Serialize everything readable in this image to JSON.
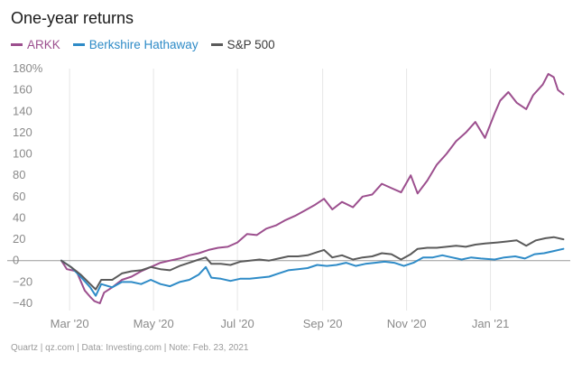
{
  "chart_data": {
    "type": "line",
    "title": "One-year returns",
    "ylabel": "",
    "xlabel": "",
    "ylim": [
      -40,
      180
    ],
    "y_ticks": [
      -40,
      -20,
      0,
      20,
      40,
      60,
      80,
      100,
      120,
      140,
      160,
      180
    ],
    "y_tick_labels": [
      "−40",
      "−20",
      "0",
      "20",
      "40",
      "60",
      "80",
      "100",
      "120",
      "140",
      "160",
      "180%"
    ],
    "xlim": [
      "2020-02-24",
      "2021-02-28"
    ],
    "x_ticks": [
      {
        "label": "Mar '20",
        "date": "2020-03-01"
      },
      {
        "label": "May '20",
        "date": "2020-05-01"
      },
      {
        "label": "Jul '20",
        "date": "2020-07-01"
      },
      {
        "label": "Sep '20",
        "date": "2020-09-01"
      },
      {
        "label": "Nov '20",
        "date": "2020-11-01"
      },
      {
        "label": "Jan '21",
        "date": "2021-01-01"
      }
    ],
    "grid": "vertical",
    "legend_position": "top-left",
    "series": [
      {
        "name": "ARKK",
        "color": "#9c4f8e",
        "points": [
          [
            "2020-02-24",
            0
          ],
          [
            "2020-02-28",
            -8
          ],
          [
            "2020-03-06",
            -10
          ],
          [
            "2020-03-12",
            -28
          ],
          [
            "2020-03-16",
            -34
          ],
          [
            "2020-03-19",
            -38
          ],
          [
            "2020-03-23",
            -40
          ],
          [
            "2020-03-26",
            -30
          ],
          [
            "2020-04-01",
            -25
          ],
          [
            "2020-04-08",
            -18
          ],
          [
            "2020-04-15",
            -15
          ],
          [
            "2020-04-22",
            -10
          ],
          [
            "2020-04-29",
            -6
          ],
          [
            "2020-05-06",
            -2
          ],
          [
            "2020-05-13",
            0
          ],
          [
            "2020-05-20",
            2
          ],
          [
            "2020-05-27",
            5
          ],
          [
            "2020-06-03",
            7
          ],
          [
            "2020-06-10",
            10
          ],
          [
            "2020-06-17",
            12
          ],
          [
            "2020-06-24",
            13
          ],
          [
            "2020-07-01",
            17
          ],
          [
            "2020-07-08",
            25
          ],
          [
            "2020-07-15",
            24
          ],
          [
            "2020-07-22",
            30
          ],
          [
            "2020-07-29",
            33
          ],
          [
            "2020-08-05",
            38
          ],
          [
            "2020-08-12",
            42
          ],
          [
            "2020-08-19",
            47
          ],
          [
            "2020-08-26",
            52
          ],
          [
            "2020-09-02",
            58
          ],
          [
            "2020-09-08",
            48
          ],
          [
            "2020-09-15",
            55
          ],
          [
            "2020-09-23",
            50
          ],
          [
            "2020-09-30",
            60
          ],
          [
            "2020-10-07",
            62
          ],
          [
            "2020-10-14",
            72
          ],
          [
            "2020-10-21",
            68
          ],
          [
            "2020-10-28",
            64
          ],
          [
            "2020-11-04",
            80
          ],
          [
            "2020-11-09",
            63
          ],
          [
            "2020-11-16",
            75
          ],
          [
            "2020-11-23",
            90
          ],
          [
            "2020-11-30",
            100
          ],
          [
            "2020-12-07",
            112
          ],
          [
            "2020-12-14",
            120
          ],
          [
            "2020-12-21",
            130
          ],
          [
            "2020-12-28",
            115
          ],
          [
            "2021-01-04",
            138
          ],
          [
            "2021-01-08",
            150
          ],
          [
            "2021-01-14",
            158
          ],
          [
            "2021-01-20",
            148
          ],
          [
            "2021-01-27",
            142
          ],
          [
            "2021-02-01",
            155
          ],
          [
            "2021-02-08",
            165
          ],
          [
            "2021-02-12",
            175
          ],
          [
            "2021-02-16",
            172
          ],
          [
            "2021-02-19",
            160
          ],
          [
            "2021-02-23",
            156
          ]
        ]
      },
      {
        "name": "Berkshire Hathaway",
        "color": "#2e8bc7",
        "points": [
          [
            "2020-02-24",
            0
          ],
          [
            "2020-03-02",
            -6
          ],
          [
            "2020-03-09",
            -15
          ],
          [
            "2020-03-16",
            -25
          ],
          [
            "2020-03-20",
            -33
          ],
          [
            "2020-03-24",
            -22
          ],
          [
            "2020-04-01",
            -25
          ],
          [
            "2020-04-08",
            -20
          ],
          [
            "2020-04-15",
            -20
          ],
          [
            "2020-04-22",
            -22
          ],
          [
            "2020-04-29",
            -18
          ],
          [
            "2020-05-06",
            -22
          ],
          [
            "2020-05-13",
            -24
          ],
          [
            "2020-05-20",
            -20
          ],
          [
            "2020-05-27",
            -18
          ],
          [
            "2020-06-03",
            -13
          ],
          [
            "2020-06-08",
            -6
          ],
          [
            "2020-06-12",
            -16
          ],
          [
            "2020-06-19",
            -17
          ],
          [
            "2020-06-26",
            -19
          ],
          [
            "2020-07-03",
            -17
          ],
          [
            "2020-07-10",
            -17
          ],
          [
            "2020-07-17",
            -16
          ],
          [
            "2020-07-24",
            -15
          ],
          [
            "2020-07-31",
            -12
          ],
          [
            "2020-08-07",
            -9
          ],
          [
            "2020-08-14",
            -8
          ],
          [
            "2020-08-21",
            -7
          ],
          [
            "2020-08-28",
            -4
          ],
          [
            "2020-09-04",
            -5
          ],
          [
            "2020-09-11",
            -4
          ],
          [
            "2020-09-18",
            -2
          ],
          [
            "2020-09-25",
            -5
          ],
          [
            "2020-10-02",
            -3
          ],
          [
            "2020-10-09",
            -2
          ],
          [
            "2020-10-16",
            -1
          ],
          [
            "2020-10-23",
            -2
          ],
          [
            "2020-10-30",
            -5
          ],
          [
            "2020-11-06",
            -2
          ],
          [
            "2020-11-13",
            3
          ],
          [
            "2020-11-20",
            3
          ],
          [
            "2020-11-27",
            5
          ],
          [
            "2020-12-04",
            3
          ],
          [
            "2020-12-11",
            1
          ],
          [
            "2020-12-18",
            3
          ],
          [
            "2020-12-25",
            2
          ],
          [
            "2021-01-04",
            1
          ],
          [
            "2021-01-11",
            3
          ],
          [
            "2021-01-19",
            4
          ],
          [
            "2021-01-26",
            2
          ],
          [
            "2021-02-02",
            6
          ],
          [
            "2021-02-09",
            7
          ],
          [
            "2021-02-16",
            9
          ],
          [
            "2021-02-23",
            11
          ]
        ]
      },
      {
        "name": "S&P 500",
        "color": "#5a5a5a",
        "points": [
          [
            "2020-02-24",
            0
          ],
          [
            "2020-03-02",
            -6
          ],
          [
            "2020-03-09",
            -13
          ],
          [
            "2020-03-16",
            -22
          ],
          [
            "2020-03-20",
            -27
          ],
          [
            "2020-03-24",
            -18
          ],
          [
            "2020-04-01",
            -18
          ],
          [
            "2020-04-08",
            -12
          ],
          [
            "2020-04-15",
            -10
          ],
          [
            "2020-04-22",
            -9
          ],
          [
            "2020-04-29",
            -6
          ],
          [
            "2020-05-06",
            -8
          ],
          [
            "2020-05-13",
            -9
          ],
          [
            "2020-05-20",
            -5
          ],
          [
            "2020-05-27",
            -2
          ],
          [
            "2020-06-03",
            1
          ],
          [
            "2020-06-08",
            3
          ],
          [
            "2020-06-12",
            -3
          ],
          [
            "2020-06-19",
            -3
          ],
          [
            "2020-06-26",
            -4
          ],
          [
            "2020-07-03",
            -1
          ],
          [
            "2020-07-10",
            0
          ],
          [
            "2020-07-17",
            1
          ],
          [
            "2020-07-24",
            0
          ],
          [
            "2020-07-31",
            2
          ],
          [
            "2020-08-07",
            4
          ],
          [
            "2020-08-14",
            4
          ],
          [
            "2020-08-21",
            5
          ],
          [
            "2020-08-28",
            8
          ],
          [
            "2020-09-02",
            10
          ],
          [
            "2020-09-08",
            3
          ],
          [
            "2020-09-15",
            5
          ],
          [
            "2020-09-23",
            1
          ],
          [
            "2020-09-30",
            3
          ],
          [
            "2020-10-07",
            4
          ],
          [
            "2020-10-14",
            7
          ],
          [
            "2020-10-21",
            6
          ],
          [
            "2020-10-28",
            1
          ],
          [
            "2020-11-04",
            6
          ],
          [
            "2020-11-09",
            11
          ],
          [
            "2020-11-16",
            12
          ],
          [
            "2020-11-23",
            12
          ],
          [
            "2020-11-30",
            13
          ],
          [
            "2020-12-07",
            14
          ],
          [
            "2020-12-14",
            13
          ],
          [
            "2020-12-21",
            15
          ],
          [
            "2020-12-28",
            16
          ],
          [
            "2021-01-06",
            17
          ],
          [
            "2021-01-13",
            18
          ],
          [
            "2021-01-20",
            19
          ],
          [
            "2021-01-27",
            14
          ],
          [
            "2021-02-03",
            19
          ],
          [
            "2021-02-10",
            21
          ],
          [
            "2021-02-16",
            22
          ],
          [
            "2021-02-23",
            20
          ]
        ]
      }
    ]
  },
  "footer": "Quartz | qz.com | Data: Investing.com | Note: Feb. 23, 2021"
}
